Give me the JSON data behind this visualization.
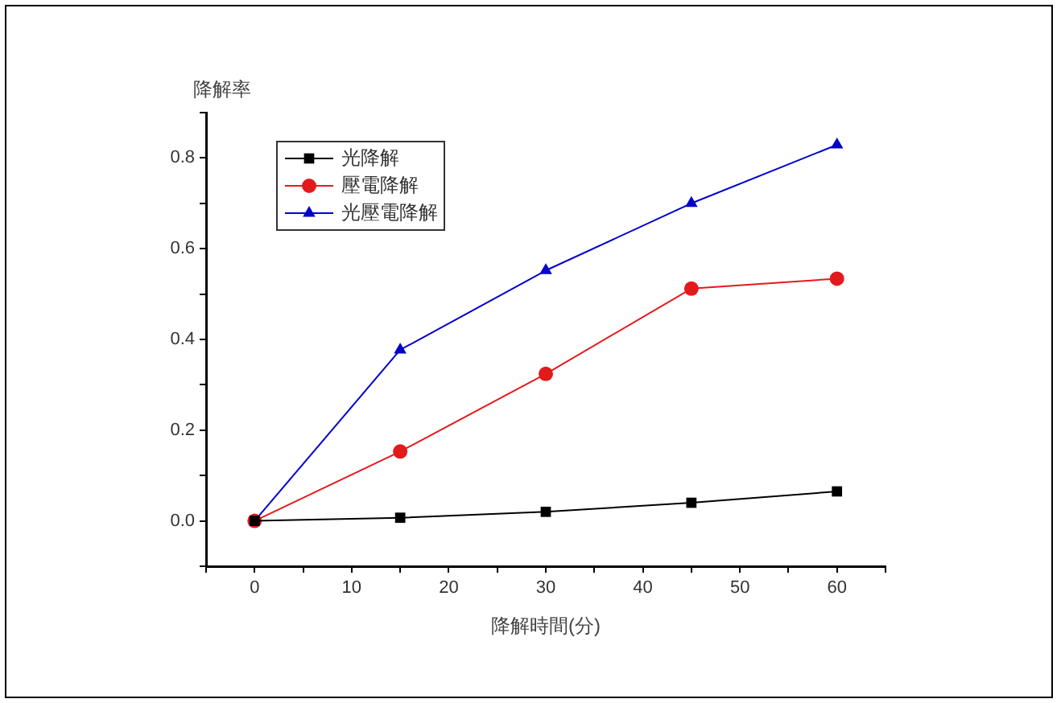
{
  "chart_data": {
    "type": "line",
    "xlabel": "降解時間(分)",
    "ylabel": "降解率",
    "x": [
      0,
      15,
      30,
      45,
      60
    ],
    "series": [
      {
        "name": "光降解",
        "color": "#000000",
        "marker": "square",
        "values": [
          0,
          0.007,
          0.02,
          0.04,
          0.065
        ]
      },
      {
        "name": "壓電降解",
        "color": "#e31a1c",
        "marker": "circle",
        "values": [
          0,
          0.153,
          0.324,
          0.512,
          0.534
        ]
      },
      {
        "name": "光壓電降解",
        "color": "#0000cc",
        "marker": "triangle",
        "values": [
          0,
          0.377,
          0.552,
          0.7,
          0.829
        ]
      }
    ],
    "xlim": [
      -5,
      65
    ],
    "xticks": [
      {
        "value": -5,
        "label": null
      },
      0,
      {
        "value": 5,
        "label": null
      },
      10,
      {
        "value": 15,
        "label": null
      },
      20,
      {
        "value": 25,
        "label": null
      },
      30,
      {
        "value": 35,
        "label": null
      },
      40,
      {
        "value": 45,
        "label": null
      },
      50,
      {
        "value": 55,
        "label": null
      },
      60,
      {
        "value": 65,
        "label": null
      }
    ],
    "ylim": [
      -0.1,
      0.9
    ],
    "yticks": [
      {
        "value": -0.1,
        "label": null
      },
      {
        "value": 0,
        "label": "0.0"
      },
      {
        "value": 0.1,
        "label": null
      },
      0.2,
      {
        "value": 0.3,
        "label": null
      },
      0.4,
      {
        "value": 0.5,
        "label": null
      },
      0.6,
      {
        "value": 0.7,
        "label": null
      },
      0.8,
      {
        "value": 0.9,
        "label": null
      }
    ],
    "grid": false,
    "legend": "top left",
    "line_style": "solid"
  }
}
